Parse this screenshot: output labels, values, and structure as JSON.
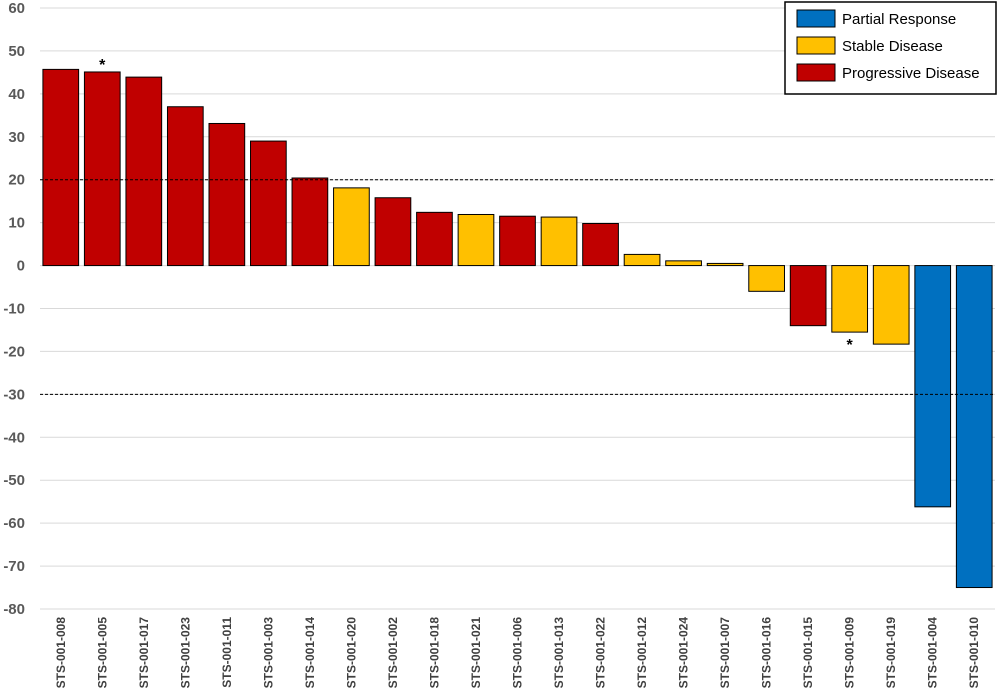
{
  "chart_data": {
    "type": "bar",
    "title": "",
    "xlabel": "",
    "ylabel": "",
    "ylim": [
      -80,
      60
    ],
    "yticks": [
      60,
      50,
      40,
      30,
      20,
      10,
      0,
      -10,
      -20,
      -30,
      -40,
      -50,
      -60,
      -70,
      -80
    ],
    "grid": true,
    "reference_lines": [
      20,
      -30
    ],
    "legend": {
      "placement": "top-right",
      "entries": [
        {
          "label": "Partial Response",
          "color": "#0070C0"
        },
        {
          "label": "Stable Disease",
          "color": "#FFC000"
        },
        {
          "label": "Progressive Disease",
          "color": "#C00000"
        }
      ]
    },
    "categories": [
      "STS-001-008",
      "STS-001-005",
      "STS-001-017",
      "STS-001-023",
      "STS-001-011",
      "STS-001-003",
      "STS-001-014",
      "STS-001-020",
      "STS-001-002",
      "STS-001-018",
      "STS-001-021",
      "STS-001-006",
      "STS-001-013",
      "STS-001-022",
      "STS-001-012",
      "STS-001-024",
      "STS-001-007",
      "STS-001-016",
      "STS-001-015",
      "STS-001-009",
      "STS-001-019",
      "STS-001-004",
      "STS-001-010"
    ],
    "values": [
      45.7,
      45.1,
      43.9,
      37.0,
      33.1,
      29.0,
      20.4,
      18.1,
      15.8,
      12.4,
      11.9,
      11.5,
      11.3,
      9.8,
      2.6,
      1.1,
      0.5,
      -6.0,
      -14.0,
      -15.5,
      -18.3,
      -56.2,
      -75.0
    ],
    "response": [
      "Progressive Disease",
      "Progressive Disease",
      "Progressive Disease",
      "Progressive Disease",
      "Progressive Disease",
      "Progressive Disease",
      "Progressive Disease",
      "Stable Disease",
      "Progressive Disease",
      "Progressive Disease",
      "Stable Disease",
      "Progressive Disease",
      "Stable Disease",
      "Progressive Disease",
      "Stable Disease",
      "Stable Disease",
      "Stable Disease",
      "Stable Disease",
      "Progressive Disease",
      "Stable Disease",
      "Stable Disease",
      "Partial Response",
      "Partial Response"
    ],
    "annotations": [
      {
        "category": "STS-001-005",
        "text": "*"
      },
      {
        "category": "STS-001-009",
        "text": "*"
      }
    ]
  }
}
